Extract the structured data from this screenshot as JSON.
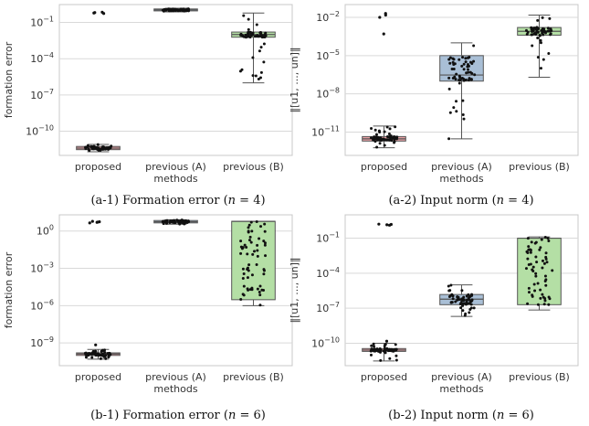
{
  "chart_data": [
    {
      "id": "a1",
      "type": "box",
      "caption": "(a-1) Formation error (n = 4)",
      "caption_parts": [
        "(a-1) Formation error (",
        "n",
        " = 4)"
      ],
      "categories": [
        "proposed",
        "previous (A)",
        "previous (B)"
      ],
      "xlabel": "methods",
      "ylabel": "formation error",
      "yscale": "log",
      "ylim": [
        1e-12,
        3
      ],
      "yticks": [
        1e-10,
        1e-07,
        0.0001,
        0.1
      ],
      "ytick_labels": [
        "10",
        "10",
        "10",
        "10"
      ],
      "ytick_exponents": [
        "−10",
        "−7",
        "−4",
        "−1"
      ],
      "colors": [
        "#e8a0a4",
        "#a9bfd6",
        "#b4dfa5"
      ],
      "boxes": [
        {
          "q1": 3e-12,
          "median": 4e-12,
          "q3": 5.5e-12,
          "whislo": 2e-12,
          "whishi": 8e-12,
          "fliers": [
            0.6,
            0.7,
            0.65,
            0.55
          ]
        },
        {
          "q1": 0.9,
          "median": 1.1,
          "q3": 1.3,
          "whislo": 0.75,
          "whishi": 1.5,
          "fliers": []
        },
        {
          "q1": 0.006,
          "median": 0.01,
          "q3": 0.016,
          "whislo": 1e-06,
          "whishi": 0.6,
          "fliers": []
        }
      ]
    },
    {
      "id": "a2",
      "type": "box",
      "caption": "(a-2) Input norm (n = 4)",
      "caption_parts": [
        "(a-2) Input norm (",
        "n",
        " = 4)"
      ],
      "categories": [
        "proposed",
        "previous (A)",
        "previous (B)"
      ],
      "xlabel": "methods",
      "ylabel": "‖[u1, ..., un]‖",
      "yscale": "log",
      "ylim": [
        1.5e-13,
        0.1
      ],
      "yticks": [
        1e-11,
        1e-08,
        1e-05,
        0.01
      ],
      "ytick_labels": [
        "10",
        "10",
        "10",
        "10"
      ],
      "ytick_exponents": [
        "−11",
        "−8",
        "−5",
        "−2"
      ],
      "colors": [
        "#e8a0a4",
        "#a9bfd6",
        "#b4dfa5"
      ],
      "boxes": [
        {
          "q1": 2e-12,
          "median": 3e-12,
          "q3": 4.5e-12,
          "whislo": 6e-13,
          "whishi": 3e-11,
          "fliers": [
            0.01,
            0.02,
            0.015,
            0.0005
          ]
        },
        {
          "q1": 1e-07,
          "median": 3e-07,
          "q3": 1e-05,
          "whislo": 3e-12,
          "whishi": 0.0001,
          "fliers": []
        },
        {
          "q1": 0.0004,
          "median": 0.0008,
          "q3": 0.0016,
          "whislo": 2e-07,
          "whishi": 0.015,
          "fliers": []
        }
      ]
    },
    {
      "id": "b1",
      "type": "box",
      "caption": "(b-1) Formation error (n = 6)",
      "caption_parts": [
        "(b-1) Formation error (",
        "n",
        " = 6)"
      ],
      "categories": [
        "proposed",
        "previous (A)",
        "previous (B)"
      ],
      "xlabel": "methods",
      "ylabel": "formation error",
      "yscale": "log",
      "ylim": [
        1.5e-11,
        20
      ],
      "yticks": [
        1e-09,
        1e-06,
        0.001,
        1
      ],
      "ytick_labels": [
        "10",
        "10",
        "10",
        "10"
      ],
      "ytick_exponents": [
        "−9",
        "−6",
        "−3",
        "0"
      ],
      "colors": [
        "#e8a0a4",
        "#a9bfd6",
        "#b4dfa5"
      ],
      "boxes": [
        {
          "q1": 1e-10,
          "median": 1.3e-10,
          "q3": 1.6e-10,
          "whislo": 5e-11,
          "whishi": 3e-10,
          "fliers": [
            5,
            5.5,
            4.5,
            6,
            5.2,
            7e-10
          ]
        },
        {
          "q1": 4.5,
          "median": 5.5,
          "q3": 7,
          "whislo": 3.5,
          "whishi": 8,
          "fliers": []
        },
        {
          "q1": 3e-06,
          "median": 6,
          "q3": 6,
          "whislo": 1e-06,
          "whishi": 6,
          "fliers": []
        }
      ]
    },
    {
      "id": "b2",
      "type": "box",
      "caption": "(b-2) Input norm (n = 6)",
      "caption_parts": [
        "(b-2) Input norm (",
        "n",
        " = 6)"
      ],
      "categories": [
        "proposed",
        "previous (A)",
        "previous (B)"
      ],
      "xlabel": "methods",
      "ylabel": "‖[u1, ..., un]‖",
      "yscale": "log",
      "ylim": [
        1.2e-12,
        10
      ],
      "yticks": [
        1e-10,
        1e-07,
        0.0001,
        0.1
      ],
      "ytick_labels": [
        "10",
        "10",
        "10",
        "10"
      ],
      "ytick_exponents": [
        "−10",
        "−7",
        "−4",
        "−1"
      ],
      "colors": [
        "#e8a0a4",
        "#a9bfd6",
        "#b4dfa5"
      ],
      "boxes": [
        {
          "q1": 2e-11,
          "median": 2.6e-11,
          "q3": 3.5e-11,
          "whislo": 3e-12,
          "whishi": 1e-10,
          "fliers": [
            1.5,
            1.3,
            1.6,
            1.4,
            1.5e-10
          ]
        },
        {
          "q1": 2e-07,
          "median": 6e-07,
          "q3": 1.5e-06,
          "whislo": 2e-08,
          "whishi": 1e-05,
          "fliers": []
        },
        {
          "q1": 2e-07,
          "median": 0.1,
          "q3": 0.1,
          "whislo": 7e-08,
          "whishi": 0.13,
          "fliers": []
        }
      ]
    }
  ]
}
